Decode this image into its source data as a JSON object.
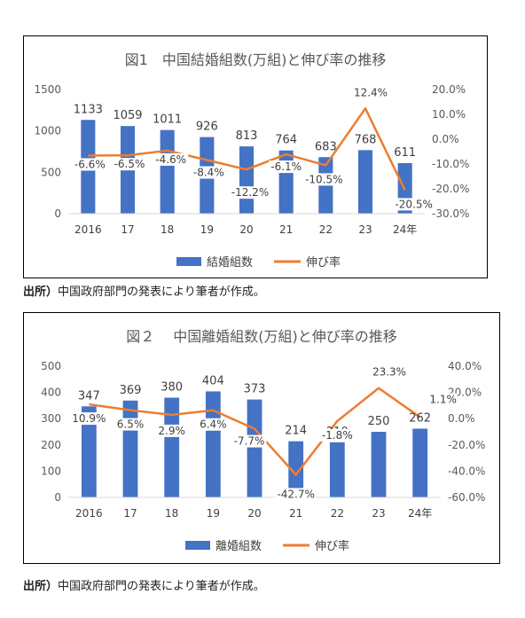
{
  "chart_data": [
    {
      "type": "bar+line",
      "title": "図1　中国結婚組数(万組)と伸び率の推移",
      "categories": [
        "2016",
        "17",
        "18",
        "19",
        "20",
        "21",
        "22",
        "23",
        "24年"
      ],
      "series": [
        {
          "name": "結婚組数",
          "type": "bar",
          "color": "#4472C4",
          "values": [
            1133,
            1059,
            1011,
            926,
            813,
            764,
            683,
            768,
            611
          ]
        },
        {
          "name": "伸び率",
          "type": "line",
          "color": "#ED7D31",
          "values": [
            -6.6,
            -6.5,
            -4.6,
            -8.4,
            -12.2,
            -6.1,
            -10.5,
            12.4,
            -20.5
          ]
        }
      ],
      "bar_labels": [
        "1133",
        "1059",
        "1011",
        "926",
        "813",
        "764",
        "683",
        "768",
        "611"
      ],
      "line_labels": [
        "-6.6%",
        "-6.5%",
        "-4.6%",
        "-8.4%",
        "-12.2%",
        "-6.1%",
        "-10.5%",
        "12.4%",
        "-20.5%"
      ],
      "y_left": {
        "ticks": [
          "1500",
          "1000",
          "500",
          "0"
        ],
        "range": [
          0,
          1500
        ]
      },
      "y_right": {
        "ticks": [
          "20.0%",
          "10.0%",
          "0.0%",
          "-10.0%",
          "-20.0%",
          "-30.0%"
        ],
        "range": [
          -30,
          20
        ]
      },
      "legend": [
        "結婚組数",
        "伸び率"
      ],
      "legend_position": "bottom"
    },
    {
      "type": "bar+line",
      "title": "図２　 中国離婚組数(万組)と伸び率の推移",
      "categories": [
        "2016",
        "17",
        "18",
        "19",
        "20",
        "21",
        "22",
        "23",
        "24年"
      ],
      "series": [
        {
          "name": "離婚組数",
          "type": "bar",
          "color": "#4472C4",
          "values": [
            347,
            369,
            380,
            404,
            373,
            214,
            210,
            250,
            262
          ]
        },
        {
          "name": "伸び率",
          "type": "line",
          "color": "#ED7D31",
          "values": [
            10.9,
            6.5,
            2.9,
            6.4,
            -7.7,
            -42.7,
            -1.8,
            23.3,
            1.1
          ]
        }
      ],
      "bar_labels": [
        "347",
        "369",
        "380",
        "404",
        "373",
        "214",
        "210",
        "250",
        "262"
      ],
      "line_labels": [
        "10.9%",
        "6.5%",
        "2.9%",
        "6.4%",
        "-7.7%",
        "-42.7%",
        "-1.8%",
        "23.3%",
        "1.1%"
      ],
      "y_left": {
        "ticks": [
          "500",
          "400",
          "300",
          "200",
          "100",
          "0"
        ],
        "range": [
          0,
          500
        ]
      },
      "y_right": {
        "ticks": [
          "40.0%",
          "20.0%",
          "0.0%",
          "-20.0%",
          "-40.0%",
          "-60.0%"
        ],
        "range": [
          -60,
          40
        ]
      },
      "legend": [
        "離婚組数",
        "伸び率"
      ],
      "legend_position": "bottom"
    }
  ],
  "source_note": {
    "prefix": "出所）",
    "text": "中国政府部門の発表により筆者が作成。"
  }
}
